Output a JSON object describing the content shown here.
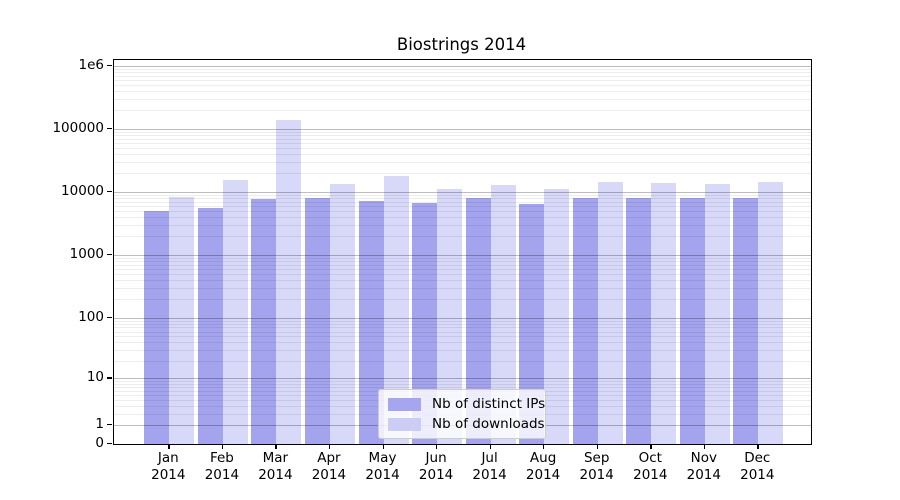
{
  "title": "Biostrings 2014",
  "chart_data": {
    "type": "bar",
    "title": "Biostrings 2014",
    "y_scale": "log10(value+1)",
    "ylim": [
      0,
      1250000
    ],
    "grid": {
      "enabled": true,
      "minor_color": "rgba(0,0,0,0.07)",
      "major_color": "rgba(0,0,0,0.26)"
    },
    "categories": [
      {
        "label": "Jan",
        "sub": "2014"
      },
      {
        "label": "Feb",
        "sub": "2014"
      },
      {
        "label": "Mar",
        "sub": "2014"
      },
      {
        "label": "Apr",
        "sub": "2014"
      },
      {
        "label": "May",
        "sub": "2014"
      },
      {
        "label": "Jun",
        "sub": "2014"
      },
      {
        "label": "Jul",
        "sub": "2014"
      },
      {
        "label": "Aug",
        "sub": "2014"
      },
      {
        "label": "Sep",
        "sub": "2014"
      },
      {
        "label": "Oct",
        "sub": "2014"
      },
      {
        "label": "Nov",
        "sub": "2014"
      },
      {
        "label": "Dec",
        "sub": "2014"
      }
    ],
    "series": [
      {
        "name": "Nb of distinct IPs",
        "color": "#a3a3ee",
        "values": [
          5000,
          5500,
          7800,
          7900,
          7300,
          6800,
          8100,
          6400,
          7900,
          8100,
          7900,
          8100
        ]
      },
      {
        "name": "Nb of downloads",
        "color": "#d8d8f8",
        "values": [
          8200,
          15400,
          138000,
          13200,
          17700,
          11000,
          12900,
          11300,
          14500,
          13900,
          13600,
          14500
        ]
      }
    ],
    "yticks": [
      {
        "label": "0",
        "value": 0
      },
      {
        "label": "1",
        "value": 1
      },
      {
        "label": "10",
        "value": 10
      },
      {
        "label": "100",
        "value": 100
      },
      {
        "label": "1000",
        "value": 1000
      },
      {
        "label": "10000",
        "value": 10000
      },
      {
        "label": "100000",
        "value": 100000
      },
      {
        "label": "1e6",
        "value": 1000000
      }
    ],
    "legend": {
      "position": "lower-center",
      "items": [
        {
          "label": "Nb of distinct IPs",
          "color": "#a6a6ee"
        },
        {
          "label": "Nb of downloads",
          "color": "#ccccf4"
        }
      ]
    }
  }
}
